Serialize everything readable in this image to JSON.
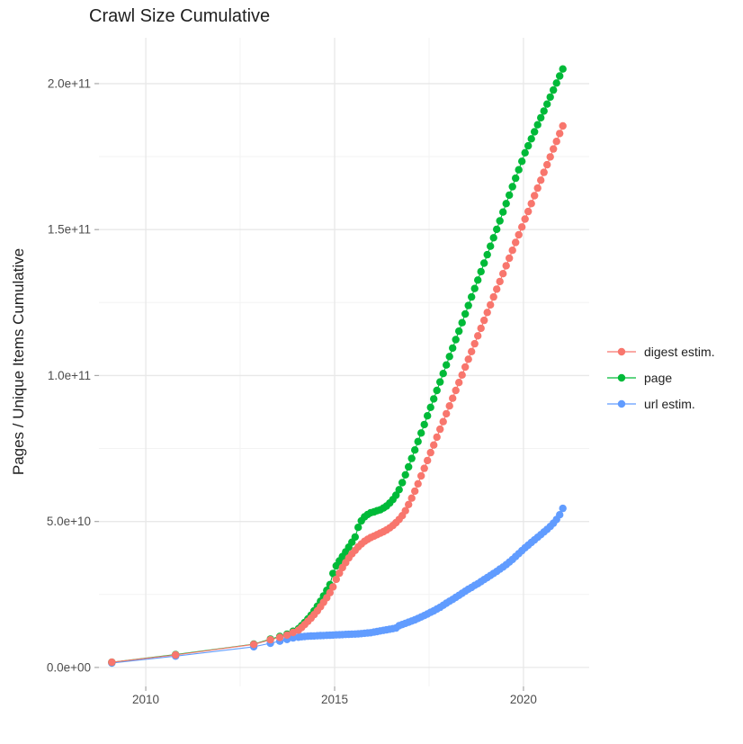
{
  "chart_data": {
    "type": "line",
    "title": "Crawl Size Cumulative",
    "xlabel": "",
    "ylabel": "Pages / Unique Items Cumulative",
    "grid": true,
    "legend_position": "right",
    "x_ticks": [
      {
        "value": 2010,
        "label": "2010"
      },
      {
        "value": 2015,
        "label": "2015"
      },
      {
        "value": 2020,
        "label": "2020"
      }
    ],
    "x_minor": [
      2012.5,
      2017.5
    ],
    "y_ticks": [
      {
        "value": 0,
        "label": "0.0e+00"
      },
      {
        "value": 50,
        "label": "5.0e+10"
      },
      {
        "value": 100,
        "label": "1.0e+11"
      },
      {
        "value": 150,
        "label": "1.5e+11"
      },
      {
        "value": 200,
        "label": "2.0e+11"
      }
    ],
    "y_minor": [
      25,
      75,
      125,
      175
    ],
    "y_value_scale": 1000000000.0,
    "xlim": [
      2008.76,
      2021.74
    ],
    "ylim_billions": [
      -6.5,
      215.7
    ],
    "series": [
      {
        "name": "digest estim.",
        "color": "#F8766D",
        "points": [
          [
            2009.1,
            1.8
          ],
          [
            2010.79,
            4.3
          ],
          [
            2012.86,
            7.9
          ],
          [
            2013.3,
            9.5
          ],
          [
            2013.55,
            10.3
          ],
          [
            2013.74,
            11.1
          ],
          [
            2013.9,
            12
          ],
          [
            2014.042,
            12.8
          ],
          [
            2014.125,
            13.7
          ],
          [
            2014.208,
            14.7
          ],
          [
            2014.292,
            15.8
          ],
          [
            2014.375,
            16.9
          ],
          [
            2014.458,
            18.1
          ],
          [
            2014.542,
            19.4
          ],
          [
            2014.625,
            20.8
          ],
          [
            2014.708,
            22.3
          ],
          [
            2014.792,
            23.9
          ],
          [
            2014.875,
            25.6
          ],
          [
            2014.958,
            27.6
          ],
          [
            2015.042,
            30.2
          ],
          [
            2015.125,
            32.3
          ],
          [
            2015.208,
            34.2
          ],
          [
            2015.292,
            35.9
          ],
          [
            2015.375,
            37.5
          ],
          [
            2015.458,
            38.9
          ],
          [
            2015.542,
            40.1
          ],
          [
            2015.625,
            41.3
          ],
          [
            2015.708,
            42.3
          ],
          [
            2015.792,
            43.2
          ],
          [
            2015.875,
            43.9
          ],
          [
            2015.958,
            44.5
          ],
          [
            2016.042,
            45
          ],
          [
            2016.125,
            45.5
          ],
          [
            2016.208,
            46
          ],
          [
            2016.292,
            46.5
          ],
          [
            2016.375,
            47.1
          ],
          [
            2016.458,
            47.8
          ],
          [
            2016.542,
            48.6
          ],
          [
            2016.625,
            49.6
          ],
          [
            2016.708,
            50.7
          ],
          [
            2016.792,
            52
          ],
          [
            2016.875,
            53.7
          ],
          [
            2016.958,
            55.8
          ],
          [
            2017.042,
            58
          ],
          [
            2017.125,
            60.4
          ],
          [
            2017.208,
            62.9
          ],
          [
            2017.292,
            65.6
          ],
          [
            2017.375,
            68.2
          ],
          [
            2017.458,
            70.9
          ],
          [
            2017.542,
            73.6
          ],
          [
            2017.625,
            76.2
          ],
          [
            2017.708,
            78.9
          ],
          [
            2017.792,
            81.6
          ],
          [
            2017.875,
            84.2
          ],
          [
            2017.958,
            86.9
          ],
          [
            2018.042,
            89.6
          ],
          [
            2018.125,
            92.2
          ],
          [
            2018.208,
            94.9
          ],
          [
            2018.292,
            97.6
          ],
          [
            2018.375,
            100.2
          ],
          [
            2018.458,
            102.9
          ],
          [
            2018.542,
            105.6
          ],
          [
            2018.625,
            108.2
          ],
          [
            2018.708,
            110.9
          ],
          [
            2018.792,
            113.6
          ],
          [
            2018.875,
            116.2
          ],
          [
            2018.958,
            118.9
          ],
          [
            2019.042,
            121.6
          ],
          [
            2019.125,
            124.2
          ],
          [
            2019.208,
            126.9
          ],
          [
            2019.292,
            129.6
          ],
          [
            2019.375,
            132.2
          ],
          [
            2019.458,
            134.9
          ],
          [
            2019.542,
            137.6
          ],
          [
            2019.625,
            140.2
          ],
          [
            2019.708,
            142.9
          ],
          [
            2019.792,
            145.6
          ],
          [
            2019.875,
            148.2
          ],
          [
            2019.958,
            150.9
          ],
          [
            2020.042,
            153.6
          ],
          [
            2020.125,
            156.2
          ],
          [
            2020.208,
            158.9
          ],
          [
            2020.292,
            161.6
          ],
          [
            2020.375,
            164.2
          ],
          [
            2020.458,
            166.9
          ],
          [
            2020.542,
            169.6
          ],
          [
            2020.625,
            172.2
          ],
          [
            2020.708,
            174.9
          ],
          [
            2020.792,
            177.6
          ],
          [
            2020.875,
            180.2
          ],
          [
            2020.958,
            182.9
          ],
          [
            2021.042,
            185.5
          ]
        ]
      },
      {
        "name": "page",
        "color": "#00BA38",
        "points": [
          [
            2009.1,
            1.8
          ],
          [
            2010.79,
            4.4
          ],
          [
            2012.86,
            8
          ],
          [
            2013.3,
            9.7
          ],
          [
            2013.55,
            10.6
          ],
          [
            2013.74,
            11.4
          ],
          [
            2013.9,
            12.4
          ],
          [
            2014.042,
            13.3
          ],
          [
            2014.125,
            14.3
          ],
          [
            2014.208,
            15.4
          ],
          [
            2014.292,
            16.6
          ],
          [
            2014.375,
            17.9
          ],
          [
            2014.458,
            19.4
          ],
          [
            2014.542,
            21
          ],
          [
            2014.625,
            22.7
          ],
          [
            2014.708,
            24.5
          ],
          [
            2014.792,
            26.4
          ],
          [
            2014.875,
            28.4
          ],
          [
            2014.958,
            32.2
          ],
          [
            2015.042,
            34.8
          ],
          [
            2015.125,
            36.5
          ],
          [
            2015.208,
            38
          ],
          [
            2015.292,
            39.6
          ],
          [
            2015.375,
            41.2
          ],
          [
            2015.458,
            42.9
          ],
          [
            2015.542,
            44.7
          ],
          [
            2015.625,
            48
          ],
          [
            2015.708,
            50.2
          ],
          [
            2015.792,
            51.6
          ],
          [
            2015.875,
            52.4
          ],
          [
            2015.958,
            53
          ],
          [
            2016.042,
            53.3
          ],
          [
            2016.125,
            53.7
          ],
          [
            2016.208,
            54
          ],
          [
            2016.292,
            54.6
          ],
          [
            2016.375,
            55.3
          ],
          [
            2016.458,
            56.3
          ],
          [
            2016.542,
            57.5
          ],
          [
            2016.625,
            59
          ],
          [
            2016.708,
            60.9
          ],
          [
            2016.792,
            63.3
          ],
          [
            2016.875,
            66
          ],
          [
            2016.958,
            68.7
          ],
          [
            2017.042,
            71.6
          ],
          [
            2017.125,
            74.5
          ],
          [
            2017.208,
            77.4
          ],
          [
            2017.292,
            80.3
          ],
          [
            2017.375,
            83.2
          ],
          [
            2017.458,
            86.2
          ],
          [
            2017.542,
            89.1
          ],
          [
            2017.625,
            92
          ],
          [
            2017.708,
            94.9
          ],
          [
            2017.792,
            97.8
          ],
          [
            2017.875,
            100.7
          ],
          [
            2017.958,
            103.6
          ],
          [
            2018.042,
            106.5
          ],
          [
            2018.125,
            109.4
          ],
          [
            2018.208,
            112.3
          ],
          [
            2018.292,
            115.2
          ],
          [
            2018.375,
            118.1
          ],
          [
            2018.458,
            121.1
          ],
          [
            2018.542,
            124
          ],
          [
            2018.625,
            126.9
          ],
          [
            2018.708,
            129.8
          ],
          [
            2018.792,
            132.7
          ],
          [
            2018.875,
            135.6
          ],
          [
            2018.958,
            138.5
          ],
          [
            2019.042,
            141.4
          ],
          [
            2019.125,
            144.3
          ],
          [
            2019.208,
            147.2
          ],
          [
            2019.292,
            150.1
          ],
          [
            2019.375,
            153
          ],
          [
            2019.458,
            156
          ],
          [
            2019.542,
            158.9
          ],
          [
            2019.625,
            161.8
          ],
          [
            2019.708,
            164.7
          ],
          [
            2019.792,
            167.6
          ],
          [
            2019.875,
            170.5
          ],
          [
            2019.958,
            173.4
          ],
          [
            2020.042,
            176.3
          ],
          [
            2020.125,
            178.7
          ],
          [
            2020.208,
            181.1
          ],
          [
            2020.292,
            183.5
          ],
          [
            2020.375,
            185.9
          ],
          [
            2020.458,
            188.3
          ],
          [
            2020.542,
            190.6
          ],
          [
            2020.625,
            193
          ],
          [
            2020.708,
            195.4
          ],
          [
            2020.792,
            197.8
          ],
          [
            2020.875,
            200.2
          ],
          [
            2020.958,
            202.6
          ],
          [
            2021.042,
            205
          ]
        ]
      },
      {
        "name": "url estim.",
        "color": "#619CFF",
        "points": [
          [
            2009.1,
            1.5
          ],
          [
            2010.79,
            3.9
          ],
          [
            2012.86,
            7.1
          ],
          [
            2013.3,
            8.3
          ],
          [
            2013.55,
            9
          ],
          [
            2013.74,
            9.6
          ],
          [
            2013.9,
            10.1
          ],
          [
            2014.042,
            10.35
          ],
          [
            2014.125,
            10.5
          ],
          [
            2014.208,
            10.6
          ],
          [
            2014.292,
            10.7
          ],
          [
            2014.375,
            10.75
          ],
          [
            2014.458,
            10.8
          ],
          [
            2014.542,
            10.85
          ],
          [
            2014.625,
            10.9
          ],
          [
            2014.708,
            10.95
          ],
          [
            2014.792,
            11
          ],
          [
            2014.875,
            11.05
          ],
          [
            2014.958,
            11.1
          ],
          [
            2015.042,
            11.15
          ],
          [
            2015.125,
            11.2
          ],
          [
            2015.208,
            11.25
          ],
          [
            2015.292,
            11.3
          ],
          [
            2015.375,
            11.35
          ],
          [
            2015.458,
            11.4
          ],
          [
            2015.542,
            11.45
          ],
          [
            2015.625,
            11.5
          ],
          [
            2015.708,
            11.6
          ],
          [
            2015.792,
            11.7
          ],
          [
            2015.875,
            11.8
          ],
          [
            2015.958,
            11.9
          ],
          [
            2016.042,
            12.1
          ],
          [
            2016.125,
            12.3
          ],
          [
            2016.208,
            12.5
          ],
          [
            2016.292,
            12.7
          ],
          [
            2016.375,
            12.9
          ],
          [
            2016.458,
            13.1
          ],
          [
            2016.542,
            13.3
          ],
          [
            2016.625,
            13.5
          ],
          [
            2016.708,
            14.3
          ],
          [
            2016.792,
            14.7
          ],
          [
            2016.875,
            15.1
          ],
          [
            2016.958,
            15.5
          ],
          [
            2017.042,
            15.9
          ],
          [
            2017.125,
            16.3
          ],
          [
            2017.208,
            16.8
          ],
          [
            2017.292,
            17.3
          ],
          [
            2017.375,
            17.8
          ],
          [
            2017.458,
            18.3
          ],
          [
            2017.542,
            18.9
          ],
          [
            2017.625,
            19.4
          ],
          [
            2017.708,
            20
          ],
          [
            2017.792,
            20.6
          ],
          [
            2017.875,
            21.3
          ],
          [
            2017.958,
            22
          ],
          [
            2018.042,
            22.7
          ],
          [
            2018.125,
            23.3
          ],
          [
            2018.208,
            24
          ],
          [
            2018.292,
            24.7
          ],
          [
            2018.375,
            25.4
          ],
          [
            2018.458,
            26.1
          ],
          [
            2018.542,
            26.8
          ],
          [
            2018.625,
            27.4
          ],
          [
            2018.708,
            28.1
          ],
          [
            2018.792,
            28.7
          ],
          [
            2018.875,
            29.4
          ],
          [
            2018.958,
            30.1
          ],
          [
            2019.042,
            30.8
          ],
          [
            2019.125,
            31.5
          ],
          [
            2019.208,
            32.2
          ],
          [
            2019.292,
            32.9
          ],
          [
            2019.375,
            33.7
          ],
          [
            2019.458,
            34.4
          ],
          [
            2019.542,
            35.2
          ],
          [
            2019.625,
            36.1
          ],
          [
            2019.708,
            37
          ],
          [
            2019.792,
            38
          ],
          [
            2019.875,
            39
          ],
          [
            2019.958,
            40
          ],
          [
            2020.042,
            41
          ],
          [
            2020.125,
            41.9
          ],
          [
            2020.208,
            42.8
          ],
          [
            2020.292,
            43.7
          ],
          [
            2020.375,
            44.6
          ],
          [
            2020.458,
            45.5
          ],
          [
            2020.542,
            46.4
          ],
          [
            2020.625,
            47.3
          ],
          [
            2020.708,
            48.3
          ],
          [
            2020.792,
            49.4
          ],
          [
            2020.875,
            50.7
          ],
          [
            2020.958,
            52.3
          ],
          [
            2021.042,
            54.5
          ]
        ]
      }
    ],
    "style": {
      "grid_major_color": "#e8e8e8",
      "grid_minor_color": "#f3f3f3",
      "tick_color": "#a8a8a8",
      "axis_text_color": "#4d4d4d",
      "point_radius": 4.2
    }
  }
}
